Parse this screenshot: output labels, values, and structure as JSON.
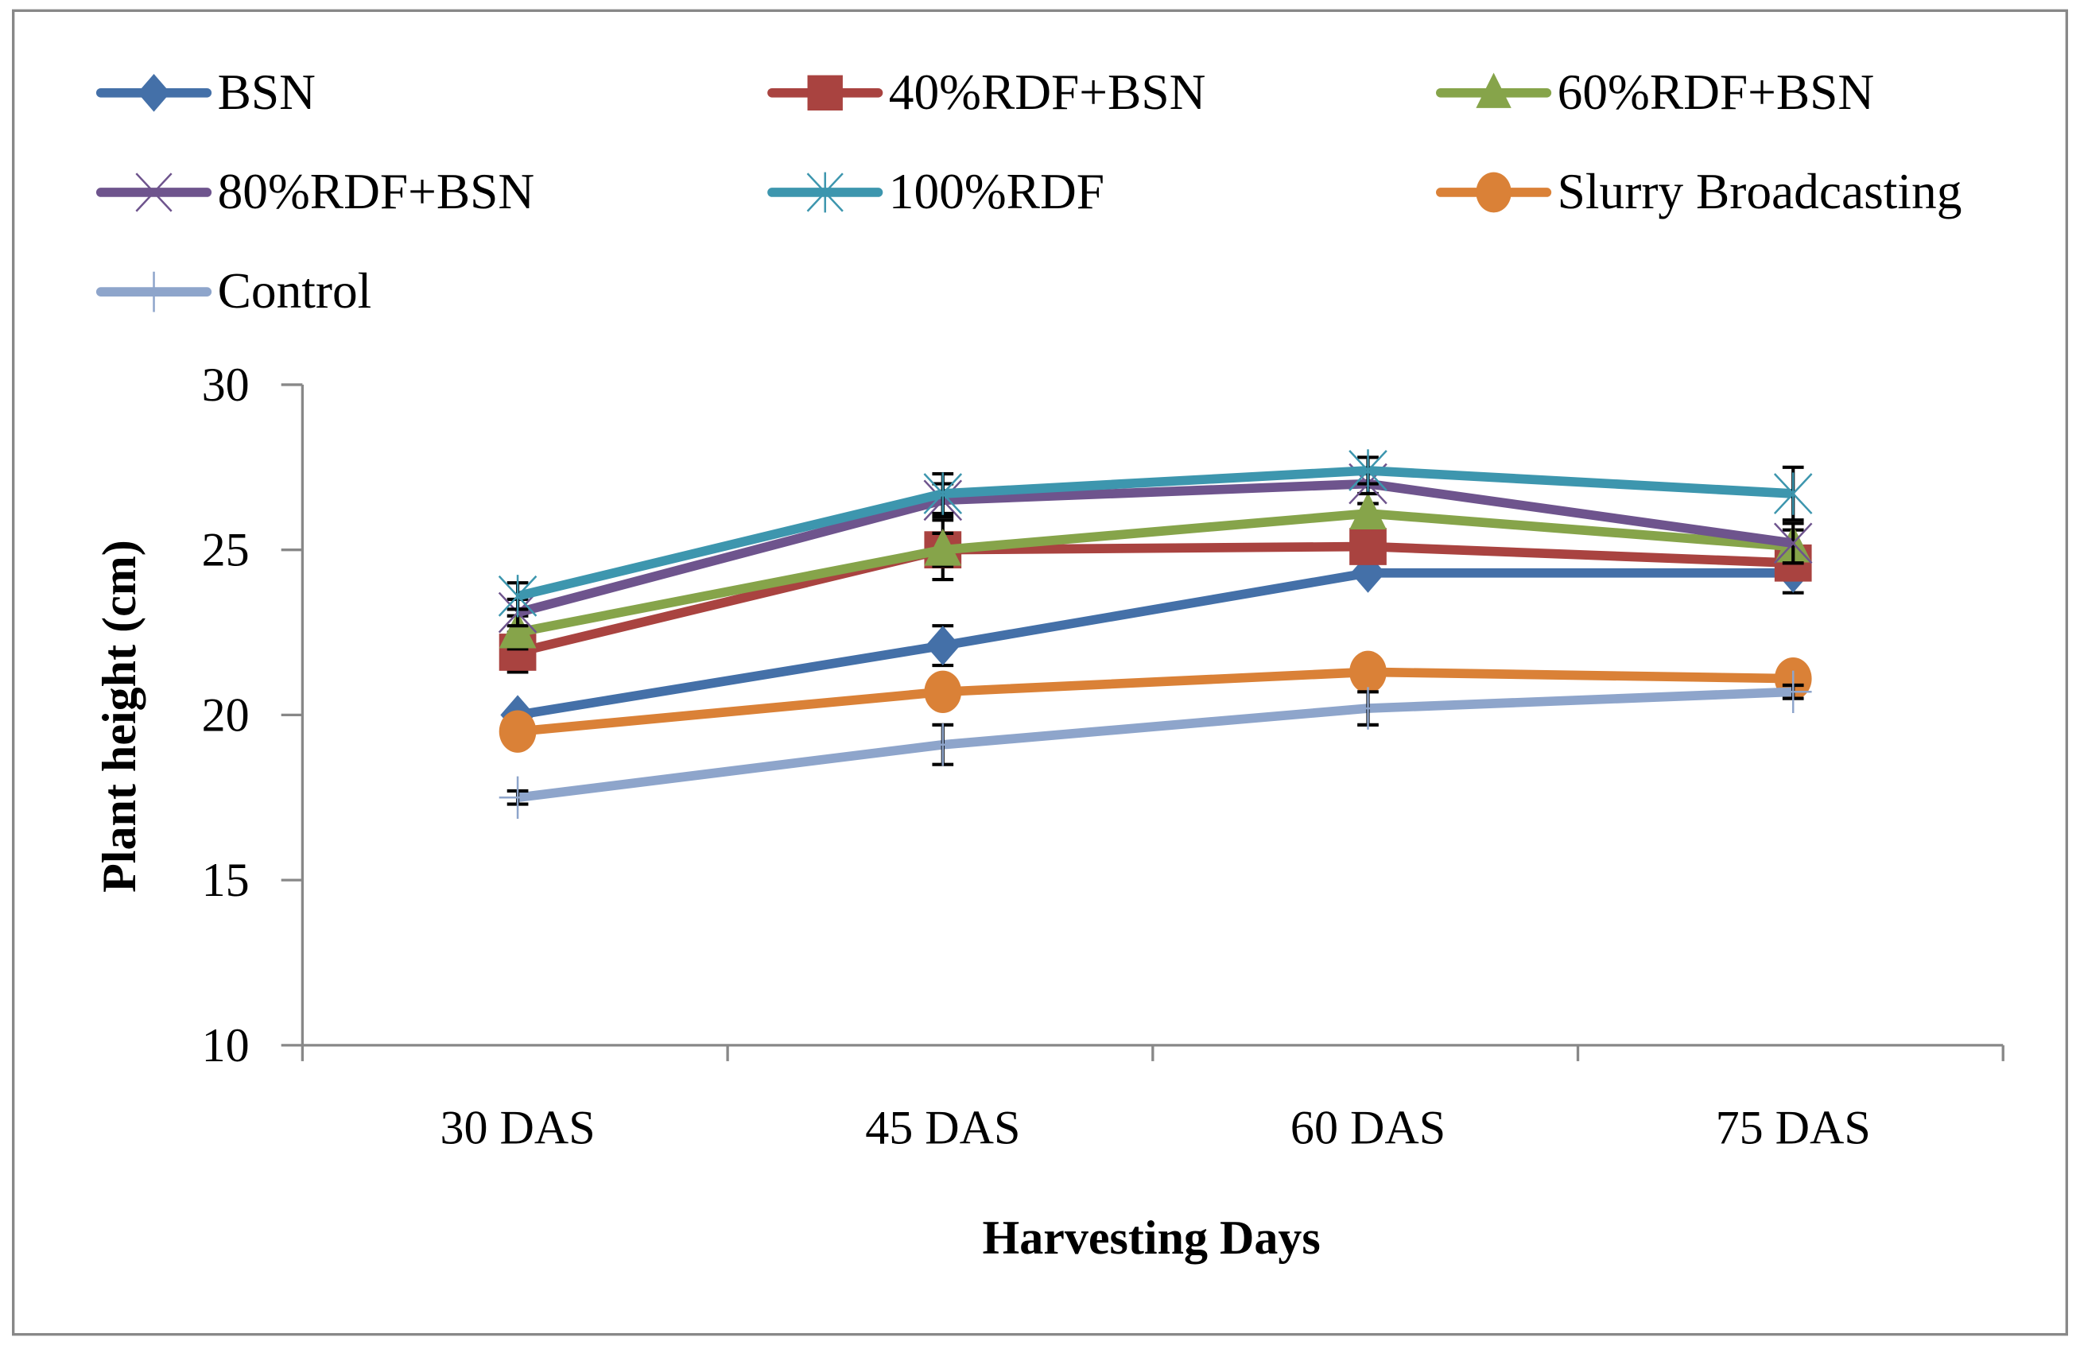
{
  "chart_data": {
    "type": "line",
    "title": "",
    "xlabel": "Harvesting Days",
    "ylabel": "Plant height (cm)",
    "ylim": [
      10,
      30
    ],
    "yticks": [
      "10",
      "15",
      "20",
      "25",
      "30"
    ],
    "categories": [
      "30 DAS",
      "45 DAS",
      "60 DAS",
      "75 DAS"
    ],
    "legend_position": "top",
    "grid": false,
    "series": [
      {
        "name": "BSN",
        "color": "#4470A8",
        "marker": "diamond",
        "values": [
          20.0,
          22.1,
          24.3,
          24.3
        ],
        "errors": [
          0.0,
          0.6,
          0.0,
          0.6
        ]
      },
      {
        "name": "40%RDF+BSN",
        "color": "#A94340",
        "marker": "square",
        "values": [
          21.9,
          25.0,
          25.1,
          24.6
        ],
        "errors": [
          0.6,
          0.9,
          0.3,
          0.5
        ]
      },
      {
        "name": "60%RDF+BSN",
        "color": "#86A44A",
        "marker": "triangle",
        "values": [
          22.5,
          25.0,
          26.1,
          25.1
        ],
        "errors": [
          0.5,
          0.5,
          0.3,
          0.5
        ]
      },
      {
        "name": "80%RDF+BSN",
        "color": "#6E548D",
        "marker": "x",
        "values": [
          23.1,
          26.5,
          27.0,
          25.2
        ],
        "errors": [
          0.4,
          0.5,
          0.3,
          0.6
        ]
      },
      {
        "name": "100%RDF",
        "color": "#3D96AE",
        "marker": "asterisk",
        "values": [
          23.6,
          26.7,
          27.4,
          26.7
        ],
        "errors": [
          0.4,
          0.6,
          0.4,
          0.8
        ]
      },
      {
        "name": "Slurry Broadcasting",
        "color": "#DA8137",
        "marker": "circle",
        "values": [
          19.5,
          20.7,
          21.3,
          21.1
        ],
        "errors": [
          0.0,
          0.0,
          0.0,
          0.0
        ]
      },
      {
        "name": "Control",
        "color": "#8EA5CB",
        "marker": "plus",
        "values": [
          17.5,
          19.1,
          20.2,
          20.7
        ],
        "errors": [
          0.2,
          0.6,
          0.5,
          0.2
        ]
      }
    ]
  }
}
